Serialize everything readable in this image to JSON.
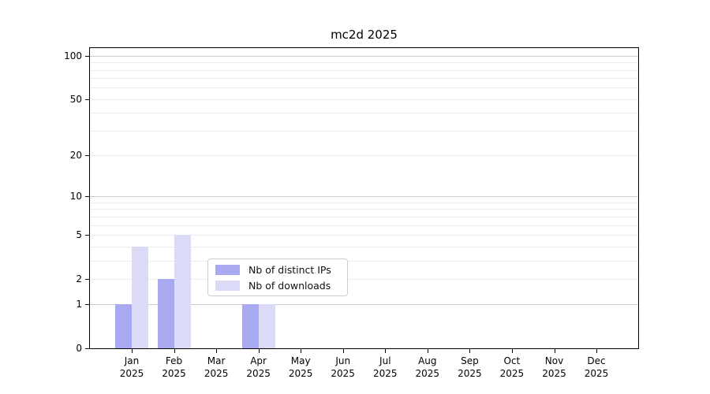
{
  "title": "mc2d 2025",
  "chart_data": {
    "type": "bar",
    "title": "mc2d 2025",
    "categories": [
      "Jan 2025",
      "Feb 2025",
      "Mar 2025",
      "Apr 2025",
      "May 2025",
      "Jun 2025",
      "Jul 2025",
      "Aug 2025",
      "Sep 2025",
      "Oct 2025",
      "Nov 2025",
      "Dec 2025"
    ],
    "series": [
      {
        "name": "Nb of distinct IPs",
        "color": "#a9a9f2",
        "values": [
          1,
          2,
          0,
          1,
          0,
          0,
          0,
          0,
          0,
          0,
          0,
          0
        ]
      },
      {
        "name": "Nb of downloads",
        "color": "#dbdbf7",
        "values": [
          4,
          5,
          0,
          1,
          0,
          0,
          0,
          0,
          0,
          0,
          0,
          0
        ]
      }
    ],
    "xlabel": "",
    "ylabel": "",
    "y_scale": "log1p",
    "ylim": [
      0,
      113
    ],
    "y_tick_labels": [
      100,
      50,
      20,
      10,
      5,
      2,
      1,
      0
    ],
    "y_major_gridlines": [
      1,
      10,
      100
    ],
    "y_minor_gridlines": [
      2,
      3,
      4,
      5,
      6,
      7,
      8,
      9,
      20,
      30,
      40,
      50,
      60,
      70,
      80,
      90
    ],
    "grid": true,
    "legend_position": "lower-center"
  },
  "colors": {
    "axis": "#000000",
    "grid_major": "#cccccc",
    "grid_minor": "#ececec",
    "legend_border": "#cccccc",
    "text": "#000000"
  }
}
